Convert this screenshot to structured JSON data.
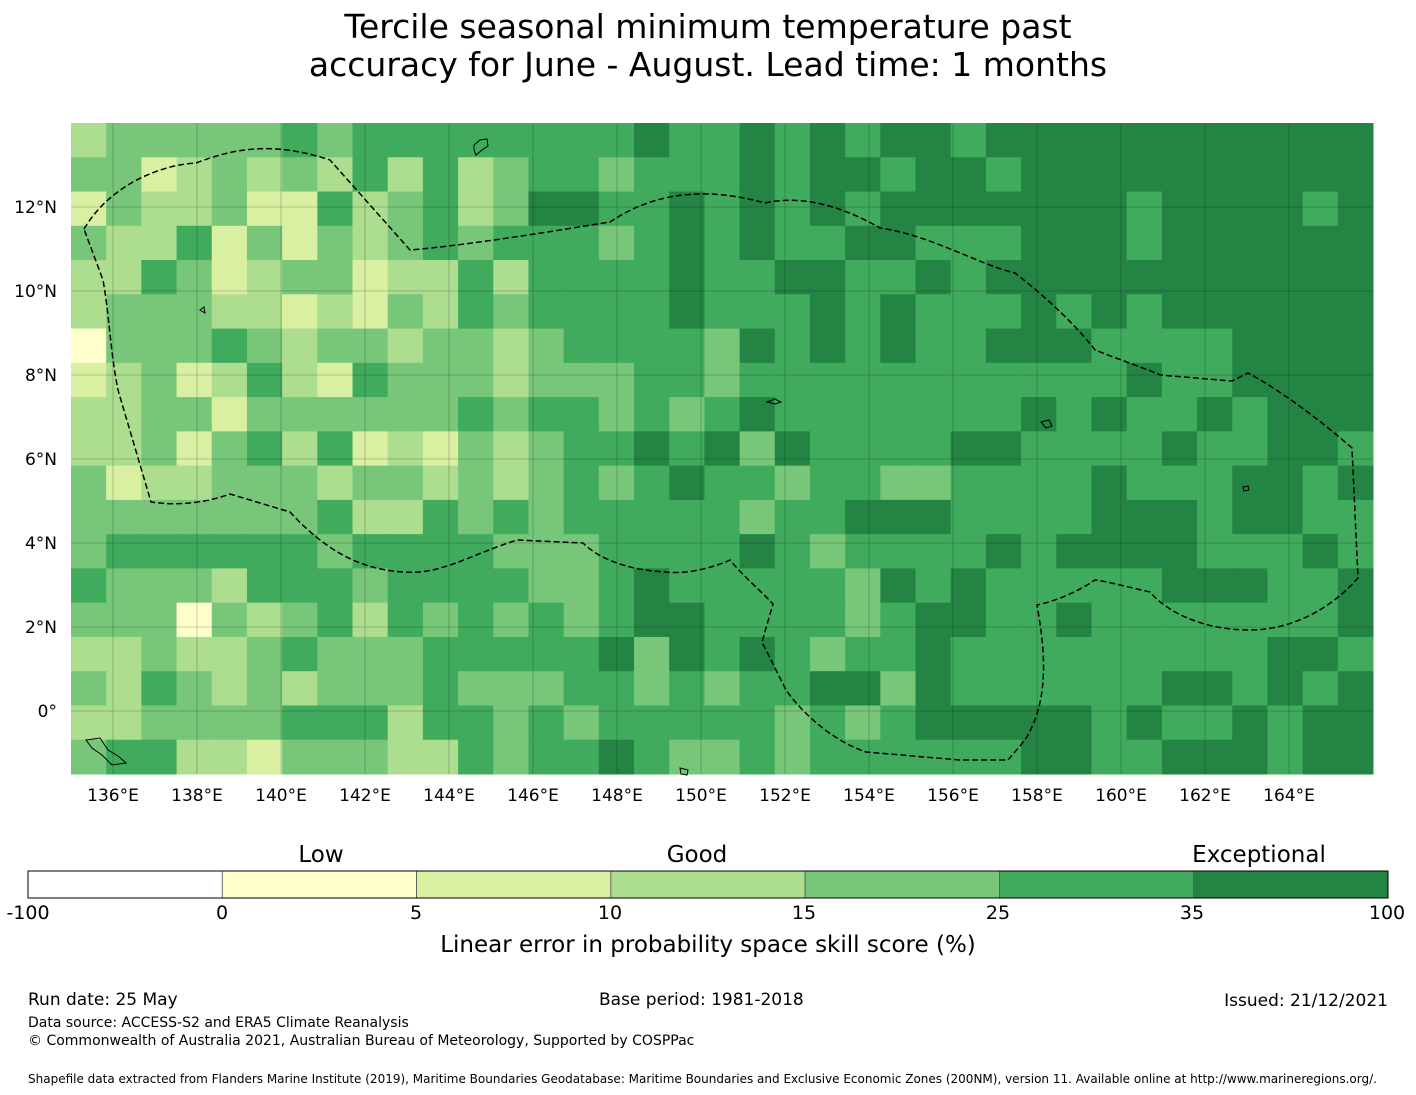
{
  "title": {
    "line1": "Tercile seasonal minimum temperature past",
    "line2": "accuracy for June - August. Lead time: 1 months"
  },
  "map": {
    "lon_range": [
      135,
      166
    ],
    "lat_range": [
      -1.5,
      14
    ],
    "lon_ticks": [
      "136°E",
      "138°E",
      "140°E",
      "142°E",
      "144°E",
      "146°E",
      "148°E",
      "150°E",
      "152°E",
      "154°E",
      "156°E",
      "158°E",
      "160°E",
      "162°E",
      "164°E"
    ],
    "lat_ticks": [
      "12°N",
      "10°N",
      "8°N",
      "6°N",
      "4°N",
      "2°N",
      "0°"
    ],
    "boundary_style": "dashed",
    "grid_colors_legend": [
      "#ffffff",
      "#ffffcc",
      "#d9f0a3",
      "#addd8e",
      "#78c679",
      "#41ab5d",
      "#238443"
    ]
  },
  "colorbar": {
    "categories": [
      "Low",
      "Good",
      "Exceptional"
    ],
    "ticks": [
      "-100",
      "0",
      "5",
      "10",
      "15",
      "25",
      "35",
      "100"
    ],
    "colors": [
      "#ffffff",
      "#ffffcc",
      "#d9f0a3",
      "#addd8e",
      "#78c679",
      "#41ab5d",
      "#238443"
    ],
    "title": "Linear error in probability space skill score (%)"
  },
  "footer": {
    "run_date": "Run date: 25 May",
    "base_period": "Base period: 1981-2018",
    "issued": "Issued: 21/12/2021",
    "data_source": "Data source: ACCESS-S2 and ERA5 Climate Reanalysis",
    "copyright": "© Commonwealth of Australia 2021, Australian Bureau of Meteorology, Supported by COSPPac",
    "shapefile": "Shapefile data extracted from Flanders Marine Institute (2019), Maritime Boundaries Geodatabase: Maritime Boundaries and Exclusive Economic Zones (200NM), version 11. Available online at http://www.marineregions.org/."
  }
}
